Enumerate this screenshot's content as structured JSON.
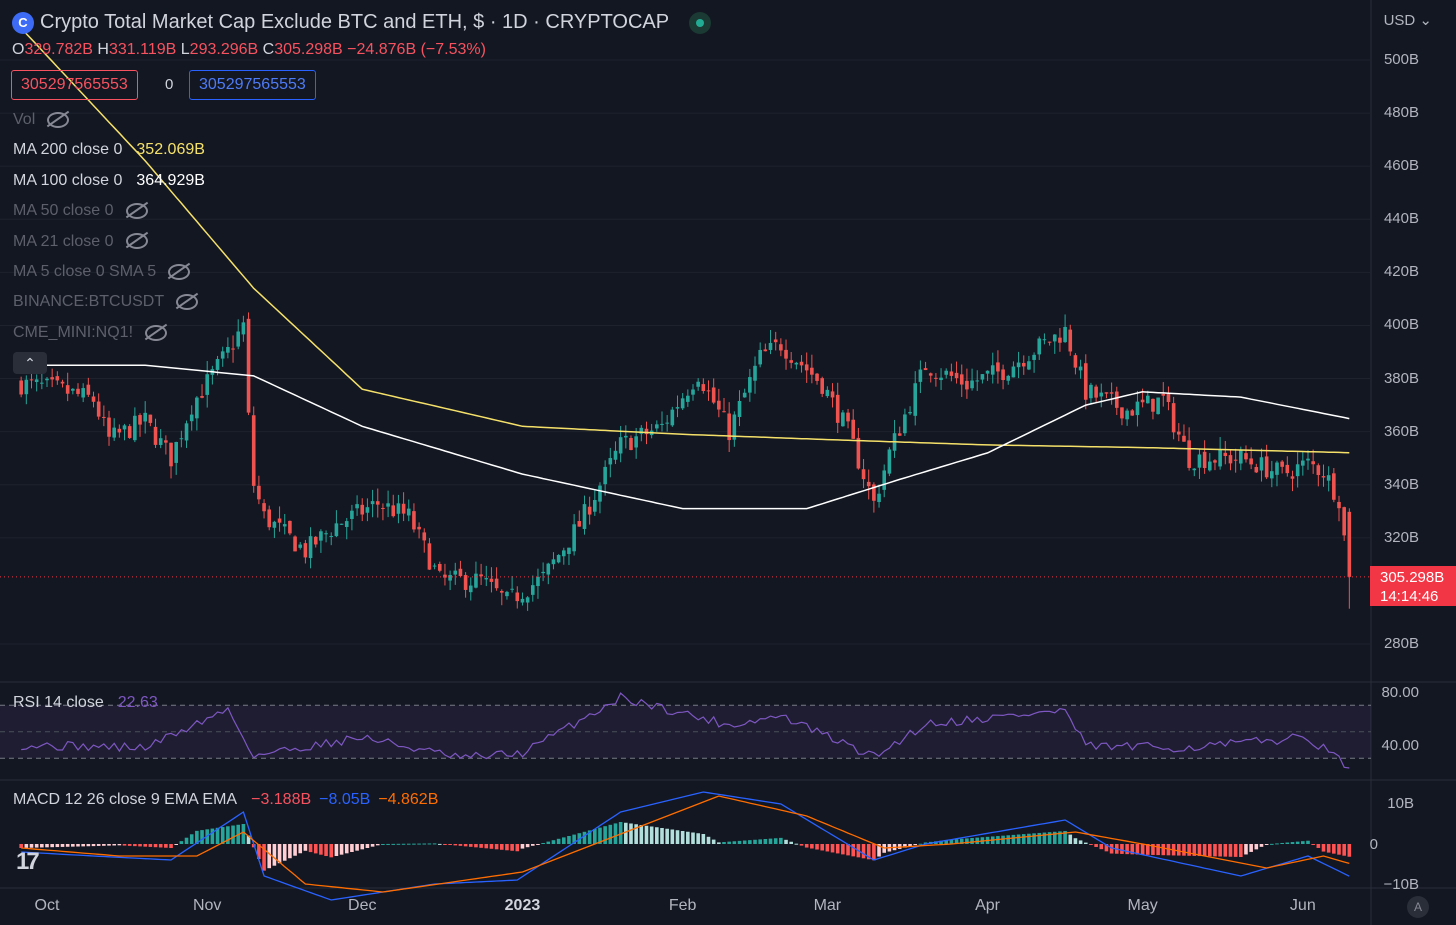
{
  "header": {
    "logo_glyph": "C",
    "title": "Crypto Total Market Cap Exclude BTC and ETH, $ · 1D · CRYPTOCAP",
    "o_label": "O",
    "o_value": "329.782B",
    "h_label": "H",
    "h_value": "331.119B",
    "l_label": "L",
    "l_value": "293.296B",
    "c_label": "C",
    "c_value": "305.298B",
    "change": "−24.876B (−7.53%)"
  },
  "price_boxes": {
    "sell": "305297565553",
    "spread": "0",
    "buy": "305297565553"
  },
  "indicators": [
    {
      "label": "Vol",
      "value": "",
      "hidden": true
    },
    {
      "label": "MA 200 close 0",
      "value": "352.069B",
      "hidden": false,
      "color": "#f5e16a"
    },
    {
      "label": "MA 100 close 0",
      "value": "364.929B",
      "hidden": false,
      "color": "#ffffff"
    },
    {
      "label": "MA 50 close 0",
      "value": "",
      "hidden": true
    },
    {
      "label": "MA 21 close 0",
      "value": "",
      "hidden": true
    },
    {
      "label": "MA 5 close 0 SMA 5",
      "value": "",
      "hidden": true
    },
    {
      "label": "BINANCE:BTCUSDT",
      "value": "",
      "hidden": true
    },
    {
      "label": "CME_MINI:NQ1!",
      "value": "",
      "hidden": true
    }
  ],
  "currency": "USD",
  "last_price": {
    "value": "305.298B",
    "countdown": "14:14:46"
  },
  "rsi": {
    "label": "RSI 14 close",
    "value": "22.63",
    "upper_band": 70,
    "lower_band": 30,
    "ticks": [
      "80.00",
      "40.00"
    ]
  },
  "macd": {
    "label": "MACD 12 26 close 9 EMA EMA",
    "hist": "−3.188B",
    "macd": "−8.05B",
    "signal": "−4.862B",
    "ticks": [
      "10B",
      "0",
      "−10B"
    ]
  },
  "colors": {
    "up": "#26a69a",
    "down": "#ef5350",
    "ma200": "#f5e16a",
    "ma100": "#ffffff",
    "rsi": "#7e57c2",
    "macd": "#2962ff",
    "signal": "#ff6d00",
    "background": "#131722"
  },
  "time_axis": [
    "Oct",
    "Nov",
    "Dec",
    "2023",
    "Feb",
    "Mar",
    "Apr",
    "May",
    "Jun"
  ],
  "chart_data": {
    "type": "candlestick",
    "title": "Crypto Total Market Cap Exclude BTC and ETH, $ · 1D · CRYPTOCAP",
    "y_unit": "B",
    "ylim": [
      272,
      510
    ],
    "y_ticks": [
      "500B",
      "480B",
      "460B",
      "440B",
      "420B",
      "400B",
      "380B",
      "360B",
      "340B",
      "320B",
      "280B"
    ],
    "x_months": [
      "Oct",
      "Nov",
      "Dec",
      "2023",
      "Feb",
      "Mar",
      "Apr",
      "May",
      "Jun"
    ],
    "close_waypoints": [
      [
        "2022-09-26",
        378
      ],
      [
        "2022-10-03",
        376
      ],
      [
        "2022-10-10",
        372
      ],
      [
        "2022-10-13",
        357
      ],
      [
        "2022-10-20",
        364
      ],
      [
        "2022-10-25",
        350
      ],
      [
        "2022-10-29",
        370
      ],
      [
        "2022-11-05",
        390
      ],
      [
        "2022-11-08",
        400
      ],
      [
        "2022-11-09",
        365
      ],
      [
        "2022-11-10",
        340
      ],
      [
        "2022-11-12",
        328
      ],
      [
        "2022-11-20",
        315
      ],
      [
        "2022-11-26",
        325
      ],
      [
        "2022-12-04",
        333
      ],
      [
        "2022-12-10",
        328
      ],
      [
        "2022-12-16",
        304
      ],
      [
        "2022-12-24",
        304
      ],
      [
        "2022-12-29",
        296
      ],
      [
        "2023-01-05",
        305
      ],
      [
        "2023-01-12",
        325
      ],
      [
        "2023-01-20",
        355
      ],
      [
        "2023-01-28",
        362
      ],
      [
        "2023-02-04",
        382
      ],
      [
        "2023-02-10",
        360
      ],
      [
        "2023-02-16",
        388
      ],
      [
        "2023-02-20",
        393
      ],
      [
        "2023-02-28",
        378
      ],
      [
        "2023-03-05",
        360
      ],
      [
        "2023-03-10",
        333
      ],
      [
        "2023-03-13",
        352
      ],
      [
        "2023-03-20",
        385
      ],
      [
        "2023-03-28",
        378
      ],
      [
        "2023-04-04",
        383
      ],
      [
        "2023-04-11",
        392
      ],
      [
        "2023-04-16",
        398
      ],
      [
        "2023-04-20",
        375
      ],
      [
        "2023-04-28",
        368
      ],
      [
        "2023-05-05",
        372
      ],
      [
        "2023-05-10",
        350
      ],
      [
        "2023-05-20",
        350
      ],
      [
        "2023-05-28",
        344
      ],
      [
        "2023-06-02",
        348
      ],
      [
        "2023-06-05",
        345
      ],
      [
        "2023-06-08",
        335
      ],
      [
        "2023-06-10",
        305.3
      ]
    ],
    "ma200_waypoints": [
      [
        "2022-09-26",
        512
      ],
      [
        "2022-10-20",
        462
      ],
      [
        "2022-11-10",
        414
      ],
      [
        "2022-12-01",
        376
      ],
      [
        "2023-01-01",
        362
      ],
      [
        "2023-02-01",
        359
      ],
      [
        "2023-03-01",
        357
      ],
      [
        "2023-04-01",
        355
      ],
      [
        "2023-05-01",
        354
      ],
      [
        "2023-06-10",
        352.069
      ]
    ],
    "ma100_waypoints": [
      [
        "2022-09-26",
        385
      ],
      [
        "2022-10-20",
        385
      ],
      [
        "2022-11-10",
        381
      ],
      [
        "2022-12-01",
        362
      ],
      [
        "2023-01-01",
        344
      ],
      [
        "2023-02-01",
        331
      ],
      [
        "2023-02-25",
        331
      ],
      [
        "2023-03-15",
        342
      ],
      [
        "2023-04-01",
        352
      ],
      [
        "2023-04-20",
        370
      ],
      [
        "2023-05-01",
        375
      ],
      [
        "2023-05-20",
        373
      ],
      [
        "2023-06-10",
        364.929
      ]
    ],
    "rsi_waypoints": [
      [
        "2022-09-26",
        40
      ],
      [
        "2022-10-20",
        38
      ],
      [
        "2022-11-05",
        67
      ],
      [
        "2022-11-10",
        32
      ],
      [
        "2022-12-01",
        46
      ],
      [
        "2022-12-20",
        30
      ],
      [
        "2023-01-01",
        34
      ],
      [
        "2023-01-20",
        76
      ],
      [
        "2023-02-10",
        55
      ],
      [
        "2023-02-20",
        62
      ],
      [
        "2023-03-10",
        31
      ],
      [
        "2023-03-20",
        56
      ],
      [
        "2023-04-16",
        66
      ],
      [
        "2023-04-20",
        39
      ],
      [
        "2023-05-10",
        38
      ],
      [
        "2023-06-02",
        46
      ],
      [
        "2023-06-10",
        22.63
      ]
    ],
    "macd_waypoints": [
      [
        "2022-09-26",
        -2
      ],
      [
        "2022-10-10",
        -3
      ],
      [
        "2022-10-25",
        -4
      ],
      [
        "2022-11-08",
        8
      ],
      [
        "2022-11-12",
        -8
      ],
      [
        "2022-11-25",
        -14
      ],
      [
        "2022-12-15",
        -10
      ],
      [
        "2022-12-31",
        -9
      ],
      [
        "2023-01-20",
        8
      ],
      [
        "2023-02-05",
        13
      ],
      [
        "2023-02-20",
        10
      ],
      [
        "2023-03-10",
        -4
      ],
      [
        "2023-03-20",
        0
      ],
      [
        "2023-04-16",
        6
      ],
      [
        "2023-04-25",
        -1
      ],
      [
        "2023-05-20",
        -8
      ],
      [
        "2023-06-02",
        -3
      ],
      [
        "2023-06-10",
        -8.05
      ]
    ],
    "signal_waypoints": [
      [
        "2022-09-26",
        -1
      ],
      [
        "2022-10-15",
        -3
      ],
      [
        "2022-10-30",
        -3
      ],
      [
        "2022-11-08",
        3
      ],
      [
        "2022-11-20",
        -10
      ],
      [
        "2022-12-05",
        -12
      ],
      [
        "2023-01-01",
        -7
      ],
      [
        "2023-01-25",
        5
      ],
      [
        "2023-02-08",
        12
      ],
      [
        "2023-02-25",
        7
      ],
      [
        "2023-03-12",
        -1
      ],
      [
        "2023-03-25",
        0
      ],
      [
        "2023-04-18",
        3
      ],
      [
        "2023-05-01",
        0
      ],
      [
        "2023-05-25",
        -6
      ],
      [
        "2023-06-05",
        -3
      ],
      [
        "2023-06-10",
        -4.862
      ]
    ]
  }
}
